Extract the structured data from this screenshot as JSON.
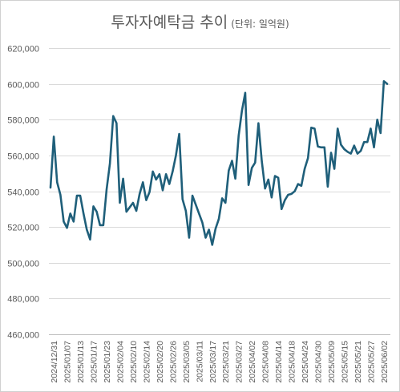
{
  "chart_data": {
    "type": "line",
    "title": "투자자예탁금 추이",
    "subtitle": "(단위: 일억원)",
    "xlabel": "",
    "ylabel": "",
    "ylim": [
      460000,
      620000
    ],
    "y_ticks": [
      460000,
      480000,
      500000,
      520000,
      540000,
      560000,
      580000,
      600000,
      620000
    ],
    "y_tick_labels": [
      "460,000",
      "480,000",
      "500,000",
      "520,000",
      "540,000",
      "560,000",
      "580,000",
      "600,000",
      "620,000"
    ],
    "x_tick_labels": [
      "2024/12/31",
      "2025/01/07",
      "2025/01/13",
      "2025/01/17",
      "2025/01/23",
      "2025/02/04",
      "2025/02/10",
      "2025/02/14",
      "2025/02/20",
      "2025/02/26",
      "2025/03/05",
      "2025/03/11",
      "2025/03/17",
      "2025/03/21",
      "2025/03/27",
      "2025/04/02",
      "2025/04/08",
      "2025/04/14",
      "2025/04/18",
      "2025/04/24",
      "2025/04/30",
      "2025/05/09",
      "2025/05/15",
      "2025/05/21",
      "2025/05/27",
      "2025/06/02"
    ],
    "grid": true,
    "legend": "none",
    "line_color": "#1f5f7a",
    "series": [
      {
        "values": [
          542000,
          570500,
          545000,
          538000,
          523000,
          519500,
          527500,
          523000,
          537500,
          537500,
          527500,
          518500,
          513000,
          531500,
          528500,
          521000,
          521000,
          541000,
          555500,
          582000,
          578000,
          533500,
          547000,
          528500,
          531000,
          533500,
          529000,
          538500,
          545000,
          535000,
          539500,
          551000,
          546500,
          549500,
          540500,
          549500,
          544000,
          551000,
          560000,
          572000,
          535500,
          529000,
          514000,
          537500,
          532500,
          527500,
          522500,
          514000,
          518500,
          510000,
          519000,
          524500,
          536000,
          533500,
          551500,
          557000,
          547000,
          571000,
          585000,
          595000,
          543500,
          553000,
          556000,
          578000,
          557000,
          541500,
          546500,
          536500,
          548500,
          547500,
          530000,
          535000,
          538000,
          538500,
          540000,
          544000,
          543000,
          552500,
          558500,
          575500,
          575000,
          565000,
          564500,
          564500,
          542500,
          561500,
          552500,
          575000,
          566000,
          563500,
          562000,
          561000,
          565500,
          561000,
          562500,
          567500,
          567500,
          575000,
          564500,
          580000,
          572500,
          601500,
          600000
        ]
      }
    ]
  }
}
